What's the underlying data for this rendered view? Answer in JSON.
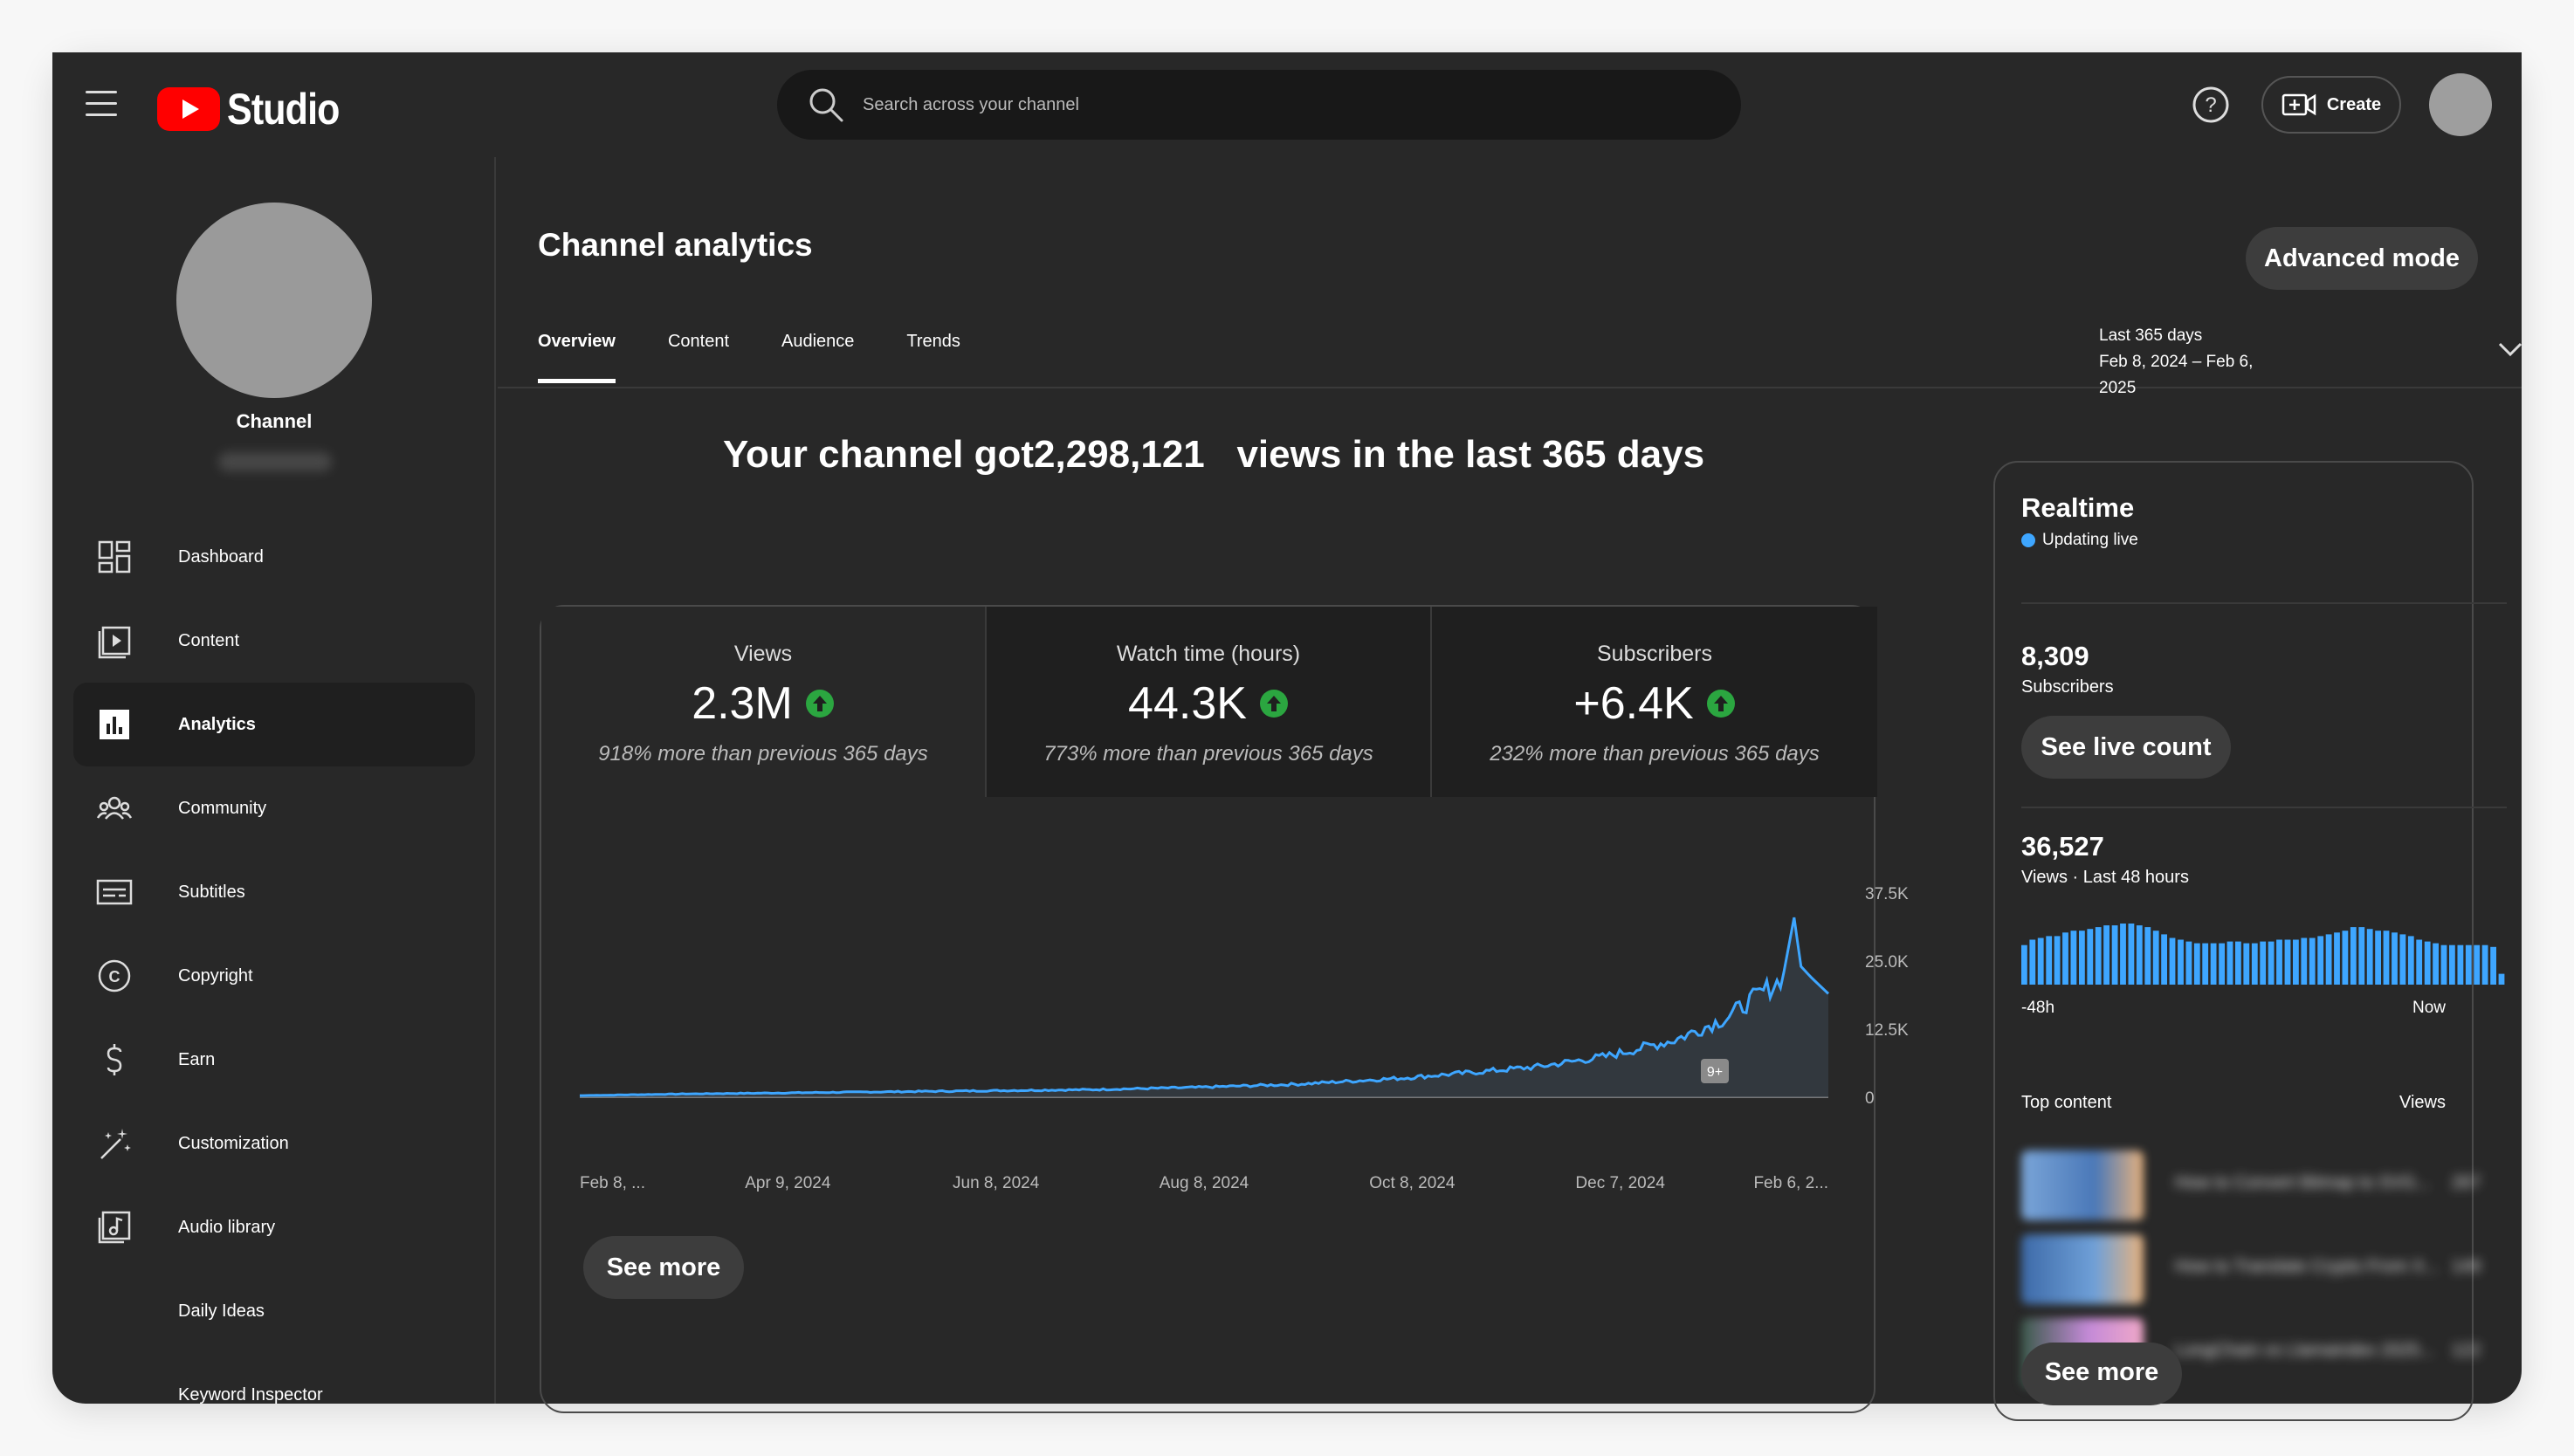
{
  "header": {
    "logo_text": "Studio",
    "search_placeholder": "Search across your channel",
    "create_label": "Create"
  },
  "sidebar": {
    "channel_name": "Channel",
    "items": [
      {
        "label": "Dashboard",
        "icon": "dashboard-icon"
      },
      {
        "label": "Content",
        "icon": "content-icon"
      },
      {
        "label": "Analytics",
        "icon": "analytics-icon"
      },
      {
        "label": "Community",
        "icon": "community-icon"
      },
      {
        "label": "Subtitles",
        "icon": "subtitles-icon"
      },
      {
        "label": "Copyright",
        "icon": "copyright-icon"
      },
      {
        "label": "Earn",
        "icon": "earn-icon"
      },
      {
        "label": "Customization",
        "icon": "customization-icon"
      },
      {
        "label": "Audio library",
        "icon": "audio-library-icon"
      },
      {
        "label": "Daily Ideas",
        "icon": ""
      },
      {
        "label": "Keyword Inspector",
        "icon": ""
      }
    ]
  },
  "main": {
    "title": "Channel analytics",
    "advanced_mode_label": "Advanced mode",
    "tabs": [
      "Overview",
      "Content",
      "Audience",
      "Trends"
    ],
    "date_range": {
      "label": "Last 365 days",
      "range": "Feb 8, 2024 – Feb 6, 2025"
    },
    "headline": "Your channel got2,298,121   views in the last 365 days",
    "metrics": [
      {
        "label": "Views",
        "value": "2.3M",
        "sub": "918% more than previous 365 days"
      },
      {
        "label": "Watch time (hours)",
        "value": "44.3K",
        "sub": "773% more than previous 365 days"
      },
      {
        "label": "Subscribers",
        "value": "+6.4K",
        "sub": "232% more than previous 365 days"
      }
    ],
    "see_more_label": "See more",
    "chart_badge": "9+"
  },
  "chart_data": {
    "type": "area",
    "series": [
      {
        "name": "Views",
        "color": "#3ea6ff"
      }
    ],
    "x_tick_labels": [
      "Feb 8, ...",
      "Apr 9, 2024",
      "Jun 8, 2024",
      "Aug 8, 2024",
      "Oct 8, 2024",
      "Dec 7, 2024",
      "Feb 6, 2..."
    ],
    "y_tick_labels": [
      "37.5K",
      "25.0K",
      "12.5K",
      "0"
    ],
    "y_ticks": [
      37500,
      25000,
      12500,
      0
    ],
    "ylim": [
      0,
      37500
    ],
    "x_days": 365,
    "anchors": [
      [
        0,
        300
      ],
      [
        30,
        600
      ],
      [
        60,
        800
      ],
      [
        90,
        1000
      ],
      [
        120,
        1200
      ],
      [
        150,
        1400
      ],
      [
        180,
        1800
      ],
      [
        210,
        2400
      ],
      [
        240,
        3500
      ],
      [
        260,
        4500
      ],
      [
        280,
        5600
      ],
      [
        300,
        7500
      ],
      [
        320,
        10500
      ],
      [
        335,
        14500
      ],
      [
        345,
        19000
      ],
      [
        350,
        21000
      ],
      [
        352,
        23000
      ],
      [
        355,
        33000
      ],
      [
        357,
        24000
      ],
      [
        360,
        22000
      ],
      [
        365,
        19000
      ]
    ]
  },
  "realtime": {
    "title": "Realtime",
    "live_label": "Updating live",
    "subscribers_value": "8,309",
    "subscribers_label": "Subscribers",
    "see_live_label": "See live count",
    "views_value": "36,527",
    "views_label": "Views · Last 48 hours",
    "axis_left": "-48h",
    "axis_right": "Now",
    "bars": [
      22,
      25,
      26,
      27,
      27,
      29,
      30,
      30,
      31,
      32,
      33,
      33,
      34,
      34,
      33,
      32,
      30,
      28,
      26,
      25,
      24,
      23,
      23,
      23,
      23,
      24,
      24,
      23,
      23,
      24,
      24,
      25,
      25,
      25,
      26,
      26,
      27,
      28,
      29,
      30,
      32,
      32,
      31,
      30,
      30,
      29,
      28,
      27,
      25,
      24,
      23,
      22,
      22,
      22,
      22,
      22,
      22,
      21,
      6
    ],
    "top_content_label": "Top content",
    "top_views_label": "Views",
    "rows": [
      {
        "title": "How to Convert Bitmap to SVG...",
        "views": "267"
      },
      {
        "title": "How to Translate Crypto From X...",
        "views": "149"
      },
      {
        "title": "LongChain vs Llamaindex 2025...",
        "views": "122"
      }
    ],
    "see_more_label": "See more"
  }
}
